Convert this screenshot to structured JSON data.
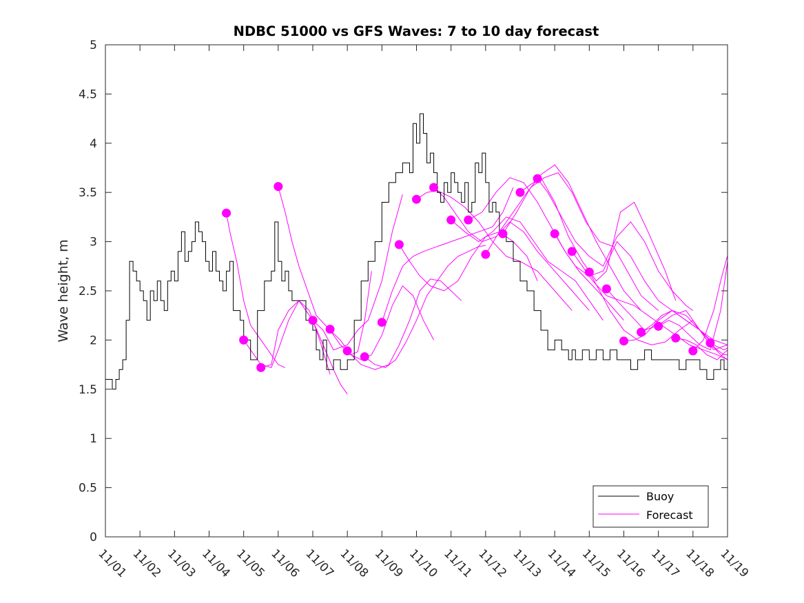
{
  "chart_data": {
    "type": "line",
    "title": "NDBC 51000 vs GFS Waves: 7 to 10 day forecast",
    "xlabel": "",
    "ylabel": "Wave height, m",
    "xlim": [
      0,
      18
    ],
    "ylim": [
      0,
      5
    ],
    "x_unit": "days since 11/01 00Z",
    "yticks": [
      0,
      0.5,
      1,
      1.5,
      2,
      2.5,
      3,
      3.5,
      4,
      4.5,
      5
    ],
    "ytick_labels": [
      "0",
      "0.5",
      "1",
      "1.5",
      "2",
      "2.5",
      "3",
      "3.5",
      "4",
      "4.5",
      "5"
    ],
    "xtick_labels": [
      "11/01",
      "11/02",
      "11/03",
      "11/04",
      "11/05",
      "11/06",
      "11/07",
      "11/08",
      "11/09",
      "11/10",
      "11/11",
      "11/12",
      "11/13",
      "11/14",
      "11/15",
      "11/16",
      "11/17",
      "11/18",
      "11/19"
    ],
    "grid": false,
    "legend_position": "bottom-right",
    "colors": {
      "buoy": "#000000",
      "forecast": "#ff00ff"
    },
    "buoy": {
      "name": "Buoy",
      "x": [
        0.0,
        0.2,
        0.3,
        0.4,
        0.5,
        0.6,
        0.7,
        0.8,
        0.9,
        1.0,
        1.1,
        1.2,
        1.3,
        1.4,
        1.5,
        1.6,
        1.7,
        1.8,
        1.9,
        2.0,
        2.1,
        2.2,
        2.3,
        2.4,
        2.5,
        2.6,
        2.7,
        2.8,
        2.9,
        3.0,
        3.1,
        3.2,
        3.3,
        3.4,
        3.5,
        3.6,
        3.7,
        3.8,
        3.9,
        4.0,
        4.2,
        4.4,
        4.6,
        4.8,
        4.9,
        5.0,
        5.1,
        5.2,
        5.3,
        5.4,
        5.6,
        5.8,
        6.0,
        6.1,
        6.2,
        6.3,
        6.4,
        6.6,
        6.8,
        7.0,
        7.2,
        7.4,
        7.6,
        7.8,
        8.0,
        8.2,
        8.4,
        8.6,
        8.8,
        8.9,
        9.0,
        9.1,
        9.2,
        9.3,
        9.4,
        9.5,
        9.6,
        9.7,
        9.8,
        9.9,
        10.0,
        10.1,
        10.2,
        10.3,
        10.4,
        10.5,
        10.6,
        10.7,
        10.8,
        10.9,
        11.0,
        11.1,
        11.2,
        11.3,
        11.4,
        11.6,
        11.8,
        12.0,
        12.2,
        12.4,
        12.6,
        12.8,
        13.0,
        13.2,
        13.4,
        13.5,
        13.6,
        13.8,
        14.0,
        14.2,
        14.4,
        14.6,
        14.8,
        15.0,
        15.2,
        15.4,
        15.6,
        15.8,
        16.0,
        16.2,
        16.4,
        16.6,
        16.8,
        17.0,
        17.2,
        17.4,
        17.6,
        17.8,
        17.9,
        18.0
      ],
      "y": [
        1.6,
        1.5,
        1.6,
        1.7,
        1.8,
        2.2,
        2.8,
        2.7,
        2.6,
        2.5,
        2.4,
        2.2,
        2.5,
        2.4,
        2.6,
        2.4,
        2.3,
        2.6,
        2.7,
        2.6,
        2.9,
        3.1,
        2.8,
        2.9,
        3.0,
        3.2,
        3.1,
        3.0,
        2.8,
        2.7,
        2.9,
        2.7,
        2.6,
        2.5,
        2.7,
        2.8,
        2.3,
        2.3,
        2.2,
        2.0,
        1.8,
        2.3,
        2.6,
        2.7,
        3.2,
        2.8,
        2.6,
        2.7,
        2.5,
        2.4,
        2.4,
        2.2,
        2.1,
        1.9,
        1.8,
        2.0,
        1.7,
        1.8,
        1.7,
        1.8,
        2.2,
        2.6,
        2.8,
        3.0,
        3.4,
        3.6,
        3.7,
        3.8,
        3.7,
        4.2,
        4.0,
        4.3,
        4.1,
        3.8,
        3.9,
        3.7,
        3.5,
        3.4,
        3.6,
        3.5,
        3.7,
        3.6,
        3.5,
        3.4,
        3.6,
        3.3,
        3.4,
        3.8,
        3.7,
        3.9,
        3.6,
        3.3,
        3.4,
        3.3,
        3.1,
        3.0,
        2.8,
        2.6,
        2.5,
        2.3,
        2.1,
        1.9,
        2.0,
        1.9,
        1.8,
        1.9,
        1.8,
        1.9,
        1.8,
        1.9,
        1.8,
        1.9,
        1.8,
        1.8,
        1.7,
        1.8,
        1.9,
        1.8,
        1.8,
        1.8,
        1.8,
        1.7,
        1.8,
        1.8,
        1.7,
        1.6,
        1.7,
        1.8,
        1.7,
        1.7
      ]
    },
    "forecast": {
      "name": "Forecast",
      "runs": [
        {
          "x": [
            3.5,
            3.6,
            3.8,
            4.0,
            4.2,
            4.5,
            4.8,
            5.0,
            5.2
          ],
          "y": [
            3.29,
            3.1,
            2.8,
            2.4,
            2.15,
            2.0,
            1.85,
            1.75,
            1.72
          ]
        },
        {
          "x": [
            4.0,
            4.2,
            4.5,
            4.8,
            5.0,
            5.3,
            5.6,
            5.9,
            6.2,
            6.5
          ],
          "y": [
            2.0,
            1.9,
            1.75,
            1.72,
            1.9,
            2.2,
            2.4,
            2.3,
            2.0,
            1.65
          ]
        },
        {
          "x": [
            4.5,
            4.8,
            5.0,
            5.3,
            5.6,
            6.0,
            6.3,
            6.6,
            6.8,
            7.0
          ],
          "y": [
            1.72,
            1.75,
            2.1,
            2.3,
            2.4,
            2.2,
            1.95,
            1.7,
            1.55,
            1.45
          ]
        },
        {
          "x": [
            5.0,
            5.2,
            5.4,
            5.6,
            5.9,
            6.1,
            6.5,
            6.8,
            7.1,
            7.3,
            7.5,
            7.7
          ],
          "y": [
            3.56,
            3.3,
            3.0,
            2.75,
            2.45,
            2.25,
            2.1,
            1.95,
            1.85,
            1.88,
            2.2,
            2.7
          ]
        },
        {
          "x": [
            6.0,
            6.3,
            6.6,
            7.0,
            7.3,
            7.6,
            8.0,
            8.3,
            8.6
          ],
          "y": [
            2.2,
            2.1,
            1.9,
            1.95,
            2.1,
            2.2,
            2.6,
            3.1,
            3.48
          ]
        },
        {
          "x": [
            6.5,
            6.8,
            7.1,
            7.4,
            7.7,
            8.0,
            8.3,
            8.6,
            8.9,
            9.2,
            9.5
          ],
          "y": [
            2.1,
            2.0,
            1.85,
            1.8,
            1.85,
            2.05,
            2.35,
            2.55,
            2.45,
            2.2,
            2.0
          ]
        },
        {
          "x": [
            7.0,
            7.4,
            7.8,
            8.2,
            8.5,
            8.8,
            9.1,
            9.4,
            9.7,
            10.0,
            10.3
          ],
          "y": [
            1.89,
            1.75,
            1.7,
            1.75,
            1.95,
            2.2,
            2.5,
            2.62,
            2.6,
            2.5,
            2.4
          ]
        },
        {
          "x": [
            7.5,
            7.8,
            8.1,
            8.4,
            8.7,
            9.0,
            9.3,
            9.6,
            9.9,
            10.2,
            10.5,
            10.8,
            11.0
          ],
          "y": [
            1.83,
            1.75,
            1.72,
            1.8,
            1.98,
            2.2,
            2.45,
            2.6,
            2.75,
            2.85,
            2.9,
            2.95,
            2.96
          ]
        },
        {
          "x": [
            8.0,
            8.3,
            8.6,
            8.9,
            9.2,
            9.6,
            10.0,
            10.4,
            10.8,
            11.2,
            11.5,
            11.8
          ],
          "y": [
            2.18,
            2.5,
            2.75,
            2.85,
            2.9,
            2.95,
            3.0,
            3.05,
            3.1,
            3.15,
            3.3,
            3.55
          ]
        },
        {
          "x": [
            8.5,
            8.8,
            9.1,
            9.4,
            9.8,
            10.2,
            10.6,
            11.0,
            11.4,
            11.8,
            12.2,
            12.5
          ],
          "y": [
            2.97,
            2.8,
            2.65,
            2.55,
            2.5,
            2.6,
            2.85,
            3.05,
            3.1,
            3.0,
            2.85,
            2.6
          ]
        },
        {
          "x": [
            9.0,
            9.3,
            9.6,
            10.0,
            10.4,
            10.8,
            11.2,
            11.6,
            12.0,
            12.5,
            13.0,
            13.5
          ],
          "y": [
            3.43,
            3.5,
            3.52,
            3.45,
            3.35,
            3.2,
            3.0,
            2.85,
            2.8,
            2.7,
            2.5,
            2.3
          ]
        },
        {
          "x": [
            9.5,
            9.8,
            10.1,
            10.5,
            10.9,
            11.3,
            11.7,
            12.1,
            12.5,
            13.0,
            13.5,
            14.0
          ],
          "y": [
            3.55,
            3.45,
            3.3,
            3.1,
            3.0,
            3.05,
            3.2,
            3.1,
            2.9,
            2.7,
            2.5,
            2.3
          ]
        },
        {
          "x": [
            10.0,
            10.4,
            10.8,
            11.2,
            11.6,
            12.0,
            12.4,
            12.8,
            13.2,
            13.6,
            14.0,
            14.4
          ],
          "y": [
            3.22,
            3.1,
            3.0,
            3.1,
            3.25,
            3.2,
            3.0,
            2.8,
            2.7,
            2.6,
            2.4,
            2.2
          ]
        },
        {
          "x": [
            10.5,
            10.9,
            11.3,
            11.7,
            12.1,
            12.5,
            12.9,
            13.3,
            13.7,
            14.1,
            14.5,
            15.0
          ],
          "y": [
            3.22,
            3.3,
            3.5,
            3.65,
            3.6,
            3.4,
            3.15,
            2.9,
            2.7,
            2.55,
            2.4,
            2.2
          ]
        },
        {
          "x": [
            11.0,
            11.4,
            11.8,
            12.2,
            12.6,
            13.0,
            13.4,
            13.8,
            14.2,
            14.6,
            15.0,
            15.5
          ],
          "y": [
            2.87,
            3.1,
            3.3,
            3.5,
            3.68,
            3.78,
            3.6,
            3.3,
            3.0,
            2.75,
            2.5,
            2.3
          ]
        },
        {
          "x": [
            11.5,
            11.9,
            12.3,
            12.7,
            13.1,
            13.5,
            13.9,
            14.3,
            14.7,
            15.1,
            15.5,
            16.0
          ],
          "y": [
            3.08,
            3.3,
            3.55,
            3.65,
            3.7,
            3.5,
            3.2,
            3.0,
            2.95,
            2.7,
            2.45,
            2.3
          ]
        },
        {
          "x": [
            12.0,
            12.3,
            12.6,
            13.0,
            13.4,
            13.8,
            14.2,
            14.5,
            14.9,
            15.3,
            15.7,
            16.2,
            16.5
          ],
          "y": [
            3.5,
            3.58,
            3.65,
            3.4,
            3.05,
            2.8,
            2.6,
            2.7,
            3.3,
            3.4,
            3.1,
            2.7,
            2.4
          ]
        },
        {
          "x": [
            12.5,
            12.8,
            13.2,
            13.6,
            14.0,
            14.4,
            14.8,
            15.2,
            15.6,
            16.0,
            16.4,
            16.8,
            17.0
          ],
          "y": [
            3.64,
            3.5,
            3.25,
            3.0,
            2.85,
            2.75,
            3.05,
            3.2,
            3.0,
            2.7,
            2.5,
            2.35,
            2.3
          ]
        },
        {
          "x": [
            13.0,
            13.3,
            13.6,
            14.0,
            14.4,
            14.8,
            15.2,
            15.6,
            16.0,
            16.4,
            16.8,
            17.2,
            17.5
          ],
          "y": [
            3.08,
            2.9,
            2.75,
            2.65,
            2.7,
            3.0,
            2.85,
            2.6,
            2.4,
            2.3,
            2.2,
            2.1,
            2.0
          ]
        },
        {
          "x": [
            13.5,
            13.8,
            14.1,
            14.5,
            14.9,
            15.3,
            15.7,
            16.1,
            16.5,
            16.9,
            17.3,
            17.7,
            18.0
          ],
          "y": [
            2.9,
            2.75,
            2.6,
            2.45,
            2.4,
            2.35,
            2.25,
            2.15,
            2.05,
            1.95,
            1.9,
            1.85,
            1.8
          ]
        },
        {
          "x": [
            14.0,
            14.3,
            14.6,
            15.0,
            15.4,
            15.8,
            16.2,
            16.6,
            17.0,
            17.4,
            17.8,
            18.0
          ],
          "y": [
            2.69,
            2.5,
            2.3,
            2.1,
            2.0,
            1.95,
            1.98,
            2.1,
            2.2,
            2.0,
            1.85,
            1.8
          ]
        },
        {
          "x": [
            14.5,
            14.8,
            15.2,
            15.6,
            16.0,
            16.4,
            16.8,
            17.2,
            17.6,
            18.0
          ],
          "y": [
            2.52,
            2.4,
            2.25,
            2.1,
            2.15,
            2.25,
            2.3,
            2.1,
            1.9,
            1.95
          ]
        },
        {
          "x": [
            15.0,
            15.3,
            15.6,
            16.0,
            16.4,
            16.8,
            17.2,
            17.6,
            17.9,
            18.0
          ],
          "y": [
            1.99,
            2.0,
            2.05,
            2.2,
            2.3,
            2.25,
            2.1,
            1.95,
            1.9,
            1.92
          ]
        },
        {
          "x": [
            15.5,
            15.8,
            16.1,
            16.4,
            16.8,
            17.2,
            17.6,
            18.0
          ],
          "y": [
            2.08,
            2.15,
            2.25,
            2.3,
            2.2,
            2.1,
            2.0,
            1.95
          ]
        },
        {
          "x": [
            16.0,
            16.3,
            16.6,
            16.9,
            17.2,
            17.5,
            17.8,
            18.0
          ],
          "y": [
            2.14,
            2.2,
            2.15,
            2.05,
            1.95,
            1.9,
            2.3,
            2.8
          ]
        },
        {
          "x": [
            16.5,
            16.8,
            17.1,
            17.4,
            17.7,
            18.0
          ],
          "y": [
            2.02,
            2.0,
            1.95,
            1.85,
            1.8,
            1.9
          ]
        },
        {
          "x": [
            17.0,
            17.3,
            17.6,
            17.8,
            18.0
          ],
          "y": [
            1.89,
            2.0,
            2.3,
            2.6,
            2.86
          ]
        },
        {
          "x": [
            17.5,
            17.7,
            17.9,
            18.0
          ],
          "y": [
            1.97,
            1.9,
            1.85,
            1.85
          ]
        }
      ],
      "markers": {
        "x": [
          3.5,
          4.0,
          4.5,
          5.0,
          6.0,
          6.5,
          7.0,
          7.5,
          8.0,
          8.5,
          9.0,
          9.5,
          10.0,
          10.5,
          11.0,
          11.5,
          12.0,
          12.5,
          13.0,
          13.5,
          14.0,
          14.5,
          15.0,
          15.5,
          16.0,
          16.5,
          17.0,
          17.5
        ],
        "y": [
          3.29,
          2.0,
          1.72,
          3.56,
          2.2,
          2.11,
          1.89,
          1.83,
          2.18,
          2.97,
          3.43,
          3.55,
          3.22,
          3.22,
          2.87,
          3.08,
          3.5,
          3.64,
          3.08,
          2.9,
          2.69,
          2.52,
          1.99,
          2.08,
          2.14,
          2.02,
          1.89,
          1.97
        ]
      }
    },
    "legend": [
      "Buoy",
      "Forecast"
    ]
  }
}
